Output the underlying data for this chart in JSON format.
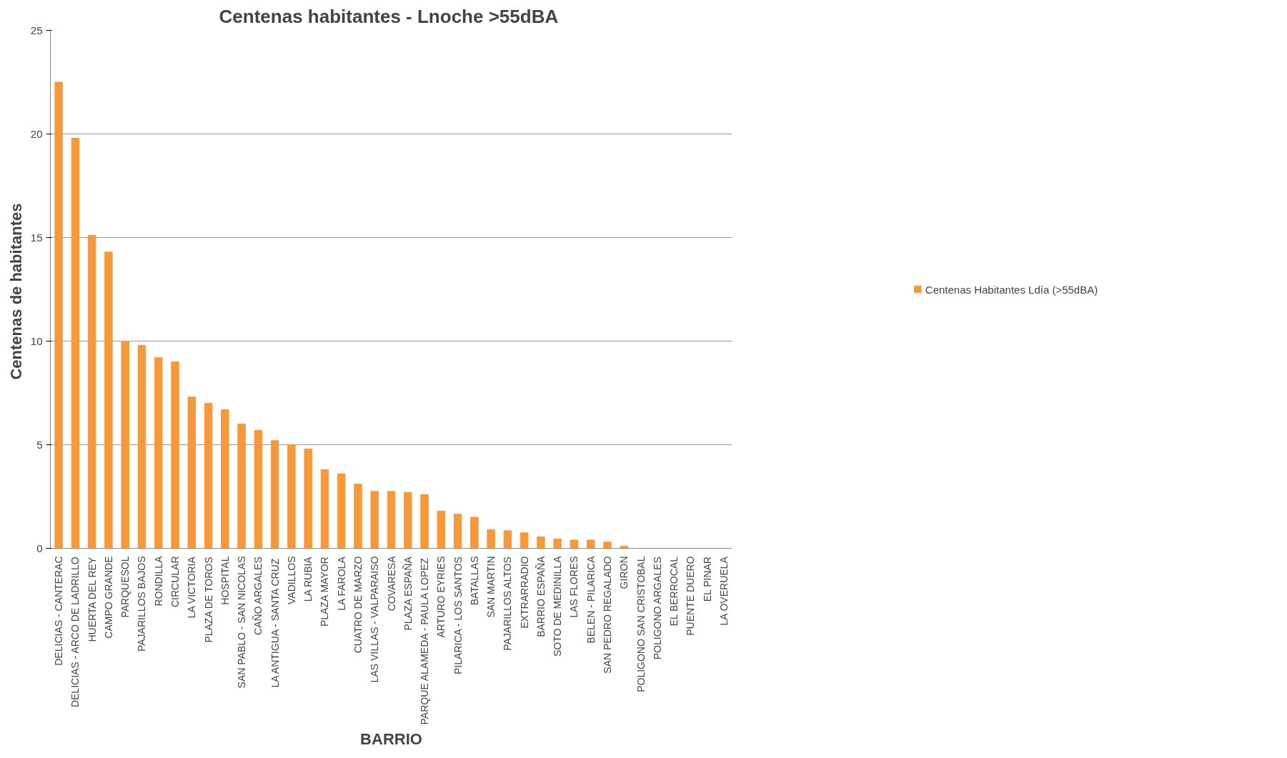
{
  "chart_data": {
    "type": "bar",
    "title": "Centenas habitantes - Lnoche  >55dBA",
    "xlabel": "BARRIO",
    "ylabel": "Centenas  de habitantes",
    "categories": [
      "DELICIAS - CANTERAC",
      "DELICIAS - ARCO DE LADRILLO",
      "HUERTA DEL REY",
      "CAMPO GRANDE",
      "PARQUESOL",
      "PAJARILLOS BAJOS",
      "RONDILLA",
      "CIRCULAR",
      "LA VICTORIA",
      "PLAZA DE TOROS",
      "HOSPITAL",
      "SAN PABLO - SAN NICOLAS",
      "CAÑO ARGALES",
      "LA ANTIGUA - SANTA CRUZ",
      "VADILLOS",
      "LA RUBIA",
      "PLAZA MAYOR",
      "LA FAROLA",
      "CUATRO DE MARZO",
      "LAS VILLAS - VALPARAISO",
      "COVARESA",
      "PLAZA ESPAÑA",
      "PARQUE ALAMEDA - PAULA LOPEZ",
      "ARTURO EYRIES",
      "PILARICA - LOS SANTOS",
      "BATALLAS",
      "SAN MARTIN",
      "PAJARILLOS ALTOS",
      "EXTRARRADIO",
      "BARRIO ESPAÑA",
      "SOTO DE MEDINILLA",
      "LAS FLORES",
      "BELEN - PILARICA",
      "SAN PEDRO REGALADO",
      "GIRON",
      "POLIGONO SAN CRISTOBAL",
      "POLIGONO ARGALES",
      "EL BERROCAL",
      "PUENTE DUERO",
      "EL PINAR",
      "LA OVERUELA"
    ],
    "series": [
      {
        "name": "Centenas Habitantes Ldía (>55dBA)",
        "color": "#f7993a",
        "values": [
          22.5,
          19.8,
          15.1,
          14.3,
          10.0,
          9.8,
          9.2,
          9.0,
          7.3,
          7.0,
          6.7,
          6.0,
          5.7,
          5.2,
          5.0,
          4.8,
          3.8,
          3.6,
          3.1,
          2.75,
          2.75,
          2.7,
          2.6,
          1.8,
          1.65,
          1.5,
          0.9,
          0.85,
          0.75,
          0.55,
          0.45,
          0.4,
          0.4,
          0.3,
          0.1,
          0,
          0,
          0,
          0,
          0,
          0
        ]
      }
    ],
    "ylim": [
      0,
      25
    ],
    "yticks": [
      0,
      5,
      10,
      15,
      20,
      25
    ],
    "grid": "y",
    "legend": "right"
  }
}
